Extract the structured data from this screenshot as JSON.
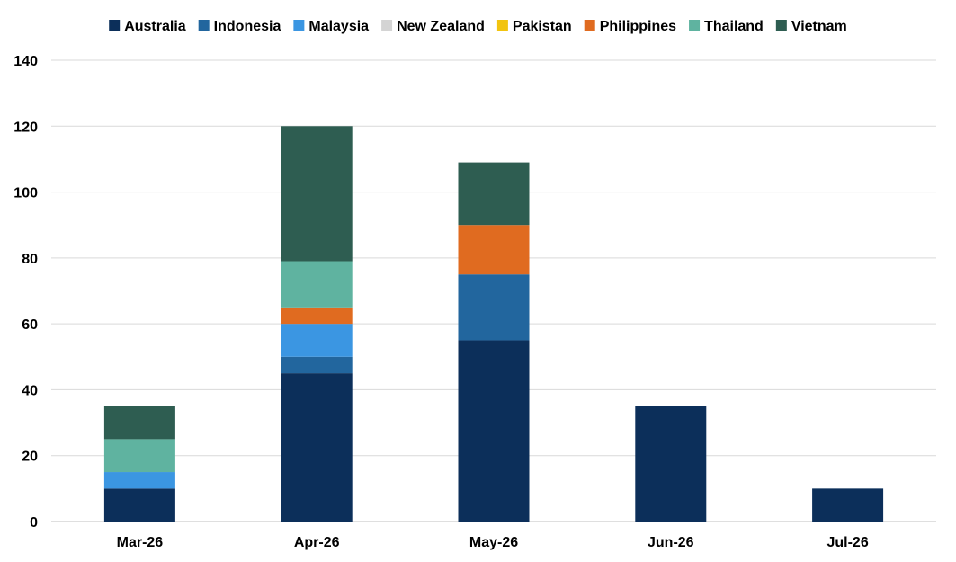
{
  "chart_data": {
    "type": "bar",
    "stacked": true,
    "categories": [
      "Mar-26",
      "Apr-26",
      "May-26",
      "Jun-26",
      "Jul-26"
    ],
    "ylim": [
      0,
      140
    ],
    "yticks": [
      0,
      20,
      40,
      60,
      80,
      100,
      120,
      140
    ],
    "grid": true,
    "legend_position": "top",
    "series": [
      {
        "name": "Australia",
        "color": "#0c2f5a",
        "values": [
          10,
          45,
          55,
          35,
          10
        ]
      },
      {
        "name": "Indonesia",
        "color": "#22669e",
        "values": [
          0,
          5,
          20,
          0,
          0
        ]
      },
      {
        "name": "Malaysia",
        "color": "#3b96e2",
        "values": [
          5,
          10,
          0,
          0,
          0
        ]
      },
      {
        "name": "New Zealand",
        "color": "#d4d4d4",
        "values": [
          0,
          0,
          0,
          0,
          0
        ]
      },
      {
        "name": "Pakistan",
        "color": "#f2c40f",
        "values": [
          0,
          0,
          0,
          0,
          0
        ]
      },
      {
        "name": "Philippines",
        "color": "#e06b20",
        "values": [
          0,
          5,
          15,
          0,
          0
        ]
      },
      {
        "name": "Thailand",
        "color": "#5fb3a0",
        "values": [
          10,
          14,
          0,
          0,
          0
        ]
      },
      {
        "name": "Vietnam",
        "color": "#2e5d51",
        "values": [
          10,
          41,
          19,
          0,
          0
        ]
      }
    ]
  }
}
